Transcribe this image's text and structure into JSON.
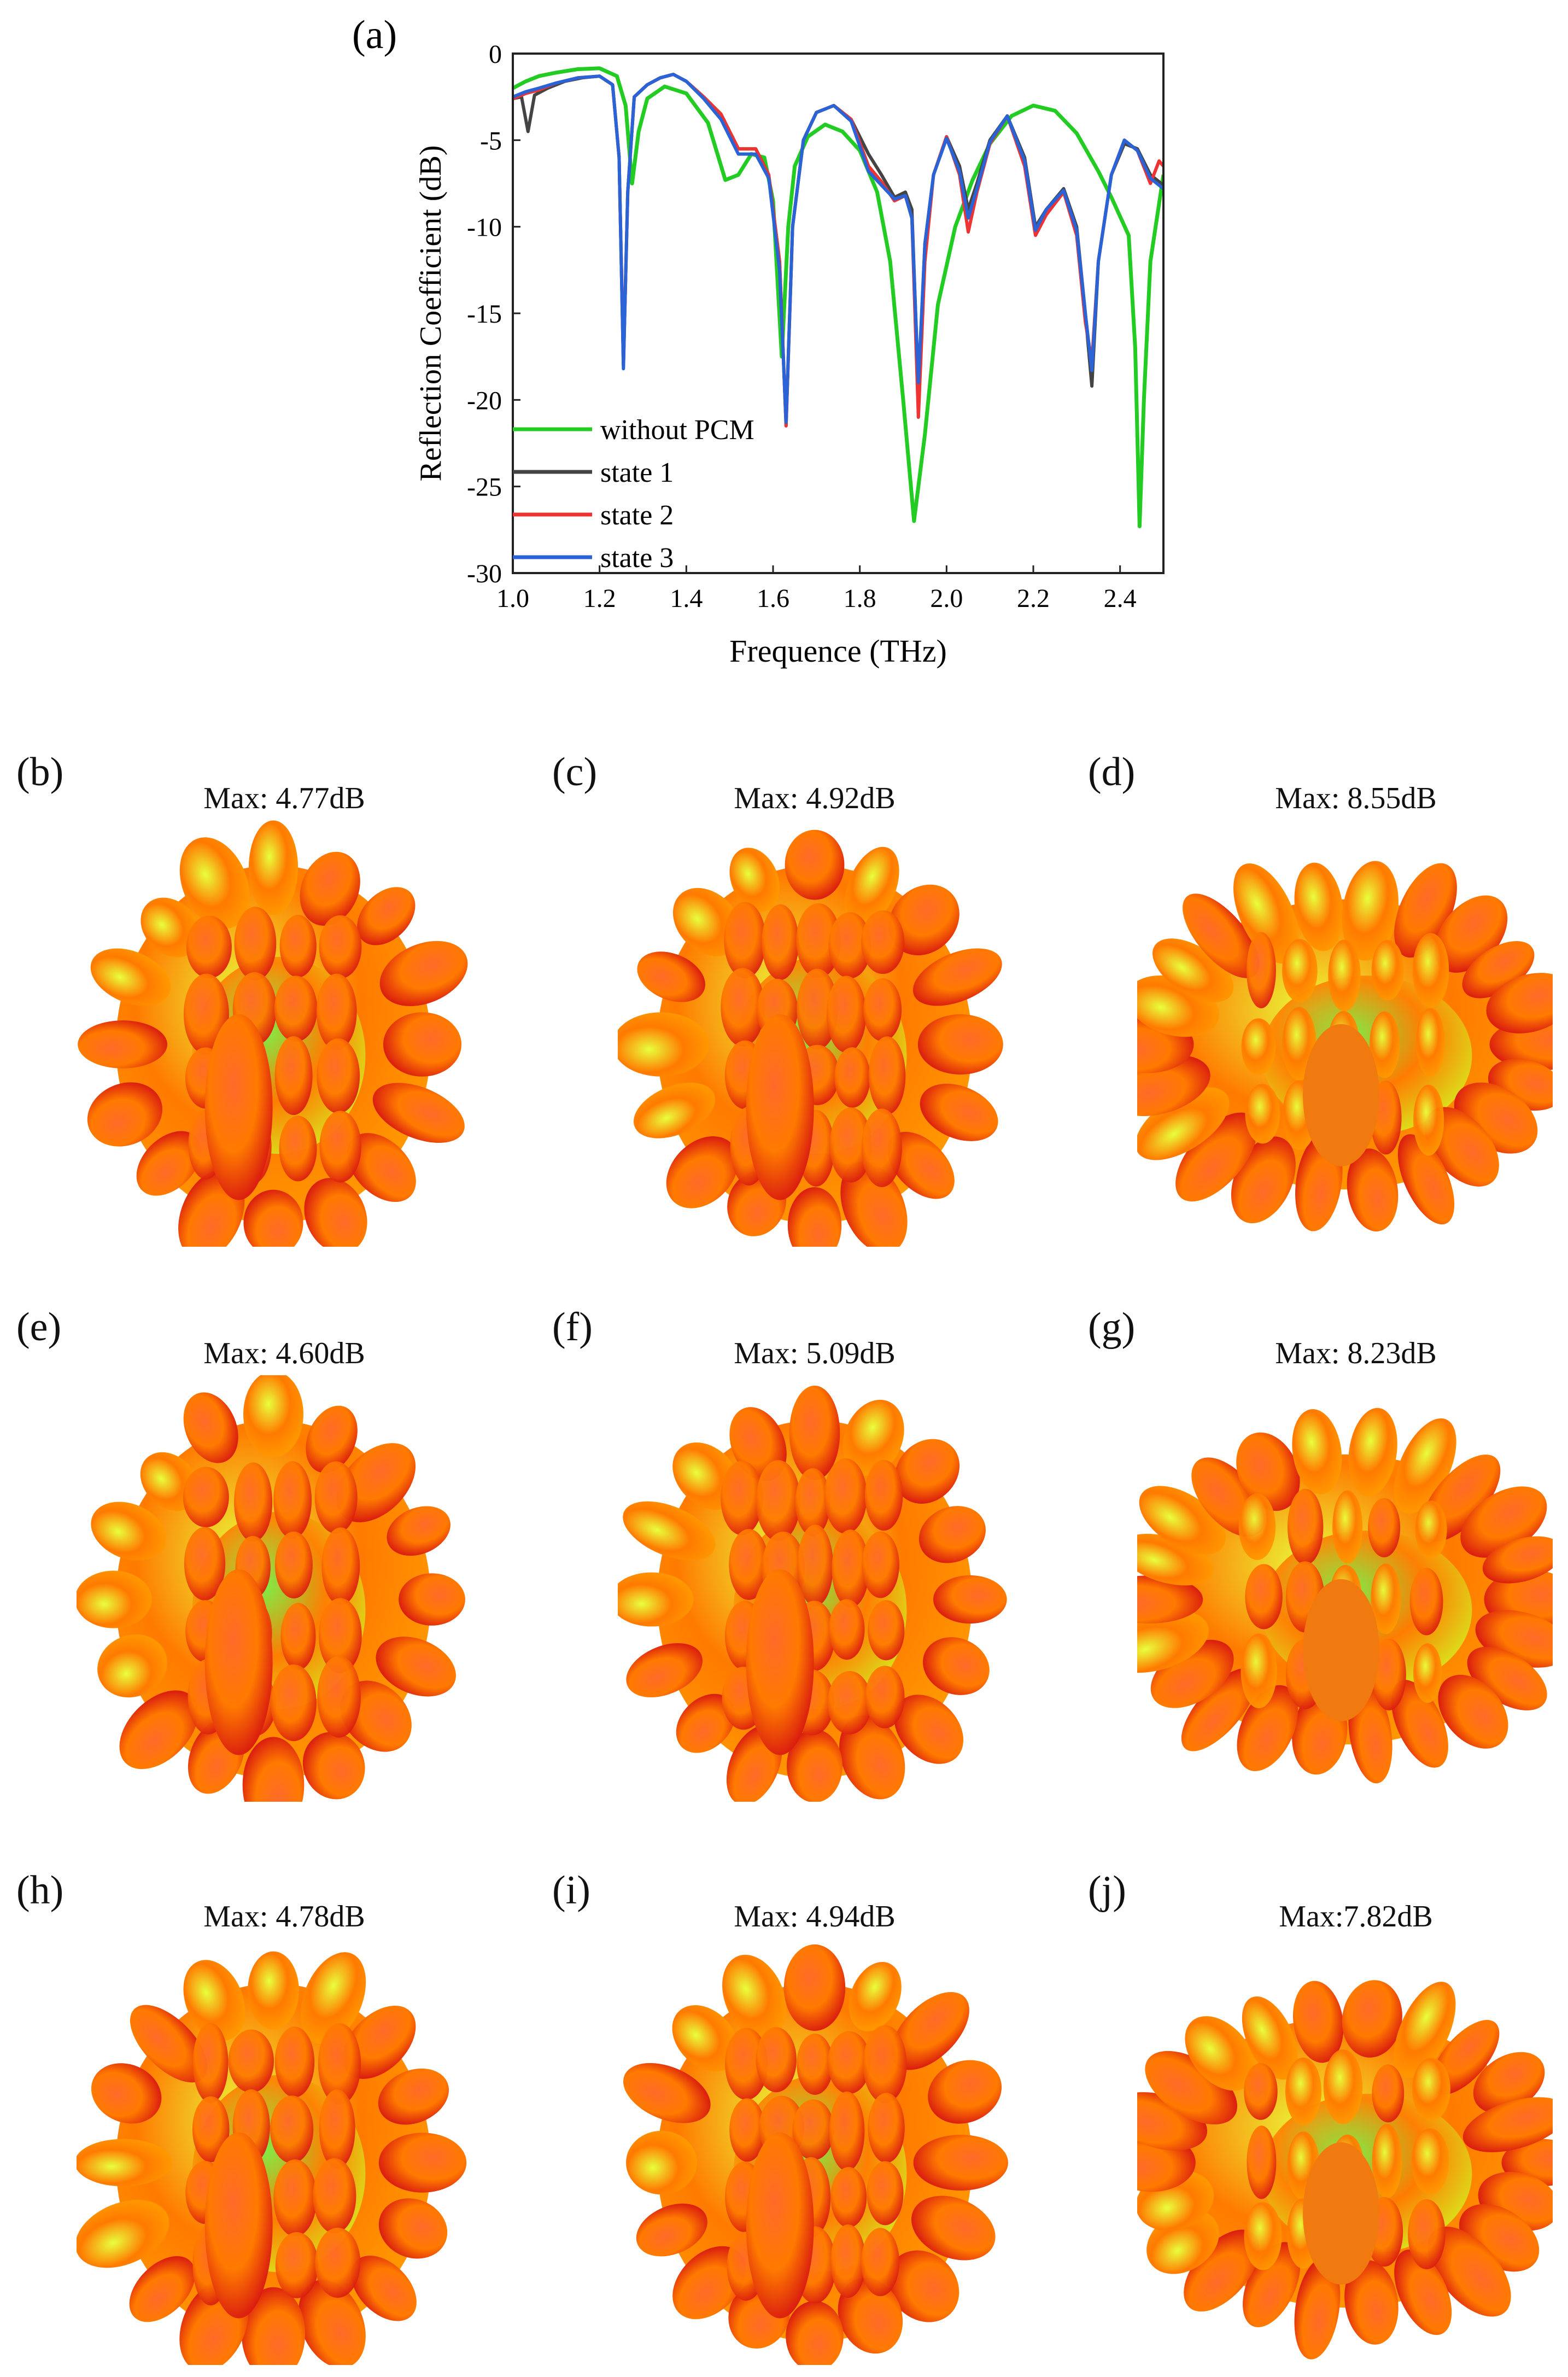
{
  "chart_data": {
    "type": "line",
    "panel_label": "(a)",
    "xlabel": "Frequence (THz)",
    "ylabel": "Reflection Coefficient (dB)",
    "xlim": [
      1.0,
      2.5
    ],
    "ylim": [
      -30,
      0
    ],
    "xticks": [
      1.0,
      1.2,
      1.4,
      1.6,
      1.8,
      2.0,
      2.2,
      2.4
    ],
    "xtick_labels": [
      "1.0",
      "1.2",
      "1.4",
      "1.6",
      "1.8",
      "2.0",
      "2.2",
      "2.4"
    ],
    "yticks": [
      0,
      -5,
      -10,
      -15,
      -20,
      -25,
      -30
    ],
    "ytick_labels": [
      "0",
      "-5",
      "-10",
      "-15",
      "-20",
      "-25",
      "-30"
    ],
    "legend_position": "lower-left",
    "series": [
      {
        "name": "without PCM",
        "color": "#22cc22",
        "points": [
          [
            1.0,
            -2.0
          ],
          [
            1.03,
            -1.6
          ],
          [
            1.06,
            -1.3
          ],
          [
            1.1,
            -1.1
          ],
          [
            1.15,
            -0.9
          ],
          [
            1.2,
            -0.85
          ],
          [
            1.24,
            -1.3
          ],
          [
            1.26,
            -3.0
          ],
          [
            1.275,
            -7.5
          ],
          [
            1.29,
            -4.5
          ],
          [
            1.31,
            -2.6
          ],
          [
            1.35,
            -1.9
          ],
          [
            1.4,
            -2.3
          ],
          [
            1.45,
            -4.0
          ],
          [
            1.49,
            -7.3
          ],
          [
            1.52,
            -7.0
          ],
          [
            1.55,
            -5.8
          ],
          [
            1.58,
            -6.0
          ],
          [
            1.6,
            -8.5
          ],
          [
            1.62,
            -17.5
          ],
          [
            1.635,
            -10.0
          ],
          [
            1.65,
            -6.5
          ],
          [
            1.68,
            -4.8
          ],
          [
            1.72,
            -4.1
          ],
          [
            1.76,
            -4.5
          ],
          [
            1.8,
            -5.6
          ],
          [
            1.84,
            -8.0
          ],
          [
            1.87,
            -12.0
          ],
          [
            1.9,
            -20.0
          ],
          [
            1.925,
            -27.0
          ],
          [
            1.95,
            -22.0
          ],
          [
            1.98,
            -14.5
          ],
          [
            2.02,
            -10.0
          ],
          [
            2.06,
            -7.3
          ],
          [
            2.1,
            -5.2
          ],
          [
            2.15,
            -3.6
          ],
          [
            2.2,
            -3.0
          ],
          [
            2.25,
            -3.3
          ],
          [
            2.3,
            -4.6
          ],
          [
            2.35,
            -6.8
          ],
          [
            2.38,
            -8.3
          ],
          [
            2.42,
            -10.5
          ],
          [
            2.435,
            -17.0
          ],
          [
            2.445,
            -27.3
          ],
          [
            2.455,
            -20.0
          ],
          [
            2.47,
            -12.0
          ],
          [
            2.5,
            -7.0
          ]
        ]
      },
      {
        "name": "state 1",
        "color": "#444444",
        "points": [
          [
            1.0,
            -2.6
          ],
          [
            1.02,
            -2.5
          ],
          [
            1.035,
            -4.5
          ],
          [
            1.05,
            -2.4
          ],
          [
            1.08,
            -2.0
          ],
          [
            1.12,
            -1.6
          ],
          [
            1.16,
            -1.4
          ],
          [
            1.2,
            -1.3
          ],
          [
            1.23,
            -1.8
          ],
          [
            1.245,
            -6.0
          ],
          [
            1.255,
            -18.0
          ],
          [
            1.265,
            -8.0
          ],
          [
            1.28,
            -2.5
          ],
          [
            1.31,
            -1.8
          ],
          [
            1.34,
            -1.4
          ],
          [
            1.37,
            -1.2
          ],
          [
            1.4,
            -1.6
          ],
          [
            1.44,
            -2.5
          ],
          [
            1.48,
            -3.5
          ],
          [
            1.52,
            -5.5
          ],
          [
            1.56,
            -5.5
          ],
          [
            1.59,
            -7.0
          ],
          [
            1.615,
            -12.0
          ],
          [
            1.63,
            -21.5
          ],
          [
            1.645,
            -10.0
          ],
          [
            1.67,
            -5.0
          ],
          [
            1.7,
            -3.4
          ],
          [
            1.74,
            -3.0
          ],
          [
            1.78,
            -3.8
          ],
          [
            1.82,
            -5.8
          ],
          [
            1.85,
            -7.0
          ],
          [
            1.88,
            -8.3
          ],
          [
            1.905,
            -8.0
          ],
          [
            1.92,
            -9.0
          ],
          [
            1.935,
            -19.5
          ],
          [
            1.95,
            -11.0
          ],
          [
            1.97,
            -7.0
          ],
          [
            2.0,
            -4.8
          ],
          [
            2.03,
            -6.5
          ],
          [
            2.05,
            -9.0
          ],
          [
            2.07,
            -7.5
          ],
          [
            2.1,
            -5.0
          ],
          [
            2.14,
            -3.6
          ],
          [
            2.18,
            -6.0
          ],
          [
            2.205,
            -10.0
          ],
          [
            2.23,
            -9.0
          ],
          [
            2.27,
            -7.8
          ],
          [
            2.3,
            -10.0
          ],
          [
            2.32,
            -15.0
          ],
          [
            2.335,
            -19.2
          ],
          [
            2.35,
            -12.0
          ],
          [
            2.38,
            -7.0
          ],
          [
            2.41,
            -5.2
          ],
          [
            2.44,
            -5.5
          ],
          [
            2.47,
            -7.0
          ],
          [
            2.5,
            -7.6
          ]
        ]
      },
      {
        "name": "state 2",
        "color": "#ee3333",
        "points": [
          [
            1.0,
            -2.6
          ],
          [
            1.03,
            -2.3
          ],
          [
            1.06,
            -2.1
          ],
          [
            1.1,
            -1.7
          ],
          [
            1.15,
            -1.4
          ],
          [
            1.2,
            -1.3
          ],
          [
            1.23,
            -1.8
          ],
          [
            1.245,
            -6.0
          ],
          [
            1.255,
            -18.0
          ],
          [
            1.265,
            -8.0
          ],
          [
            1.28,
            -2.5
          ],
          [
            1.31,
            -1.8
          ],
          [
            1.34,
            -1.4
          ],
          [
            1.37,
            -1.2
          ],
          [
            1.4,
            -1.6
          ],
          [
            1.44,
            -2.5
          ],
          [
            1.48,
            -3.5
          ],
          [
            1.52,
            -5.5
          ],
          [
            1.56,
            -5.5
          ],
          [
            1.59,
            -7.0
          ],
          [
            1.615,
            -12.0
          ],
          [
            1.63,
            -21.5
          ],
          [
            1.645,
            -10.0
          ],
          [
            1.67,
            -5.0
          ],
          [
            1.7,
            -3.4
          ],
          [
            1.74,
            -3.0
          ],
          [
            1.78,
            -3.8
          ],
          [
            1.82,
            -6.5
          ],
          [
            1.85,
            -7.4
          ],
          [
            1.88,
            -8.5
          ],
          [
            1.905,
            -8.2
          ],
          [
            1.92,
            -9.5
          ],
          [
            1.935,
            -21.0
          ],
          [
            1.95,
            -12.0
          ],
          [
            1.97,
            -7.0
          ],
          [
            2.0,
            -4.8
          ],
          [
            2.03,
            -7.0
          ],
          [
            2.05,
            -10.3
          ],
          [
            2.07,
            -8.0
          ],
          [
            2.1,
            -5.2
          ],
          [
            2.14,
            -3.6
          ],
          [
            2.18,
            -6.5
          ],
          [
            2.205,
            -10.5
          ],
          [
            2.23,
            -9.3
          ],
          [
            2.27,
            -8.0
          ],
          [
            2.3,
            -10.5
          ],
          [
            2.32,
            -15.5
          ],
          [
            2.335,
            -17.8
          ],
          [
            2.35,
            -12.0
          ],
          [
            2.38,
            -7.0
          ],
          [
            2.41,
            -5.0
          ],
          [
            2.44,
            -5.6
          ],
          [
            2.47,
            -7.5
          ],
          [
            2.49,
            -6.2
          ],
          [
            2.5,
            -6.5
          ]
        ]
      },
      {
        "name": "state 3",
        "color": "#2a63d6",
        "points": [
          [
            1.0,
            -2.5
          ],
          [
            1.03,
            -2.2
          ],
          [
            1.06,
            -2.0
          ],
          [
            1.1,
            -1.7
          ],
          [
            1.15,
            -1.4
          ],
          [
            1.2,
            -1.3
          ],
          [
            1.23,
            -1.8
          ],
          [
            1.245,
            -6.0
          ],
          [
            1.255,
            -18.2
          ],
          [
            1.265,
            -8.0
          ],
          [
            1.28,
            -2.5
          ],
          [
            1.31,
            -1.8
          ],
          [
            1.34,
            -1.4
          ],
          [
            1.37,
            -1.2
          ],
          [
            1.4,
            -1.6
          ],
          [
            1.44,
            -2.6
          ],
          [
            1.48,
            -3.8
          ],
          [
            1.52,
            -5.8
          ],
          [
            1.56,
            -5.8
          ],
          [
            1.59,
            -7.2
          ],
          [
            1.615,
            -12.5
          ],
          [
            1.63,
            -21.3
          ],
          [
            1.645,
            -10.0
          ],
          [
            1.67,
            -5.0
          ],
          [
            1.7,
            -3.4
          ],
          [
            1.74,
            -3.0
          ],
          [
            1.78,
            -3.9
          ],
          [
            1.82,
            -6.8
          ],
          [
            1.85,
            -7.6
          ],
          [
            1.88,
            -8.4
          ],
          [
            1.905,
            -8.2
          ],
          [
            1.92,
            -9.5
          ],
          [
            1.935,
            -19.0
          ],
          [
            1.95,
            -11.0
          ],
          [
            1.97,
            -7.0
          ],
          [
            2.0,
            -4.9
          ],
          [
            2.03,
            -6.8
          ],
          [
            2.05,
            -9.5
          ],
          [
            2.07,
            -7.8
          ],
          [
            2.1,
            -5.1
          ],
          [
            2.14,
            -3.6
          ],
          [
            2.18,
            -6.2
          ],
          [
            2.205,
            -10.2
          ],
          [
            2.23,
            -9.0
          ],
          [
            2.27,
            -7.9
          ],
          [
            2.3,
            -10.2
          ],
          [
            2.32,
            -15.0
          ],
          [
            2.335,
            -18.3
          ],
          [
            2.35,
            -12.0
          ],
          [
            2.38,
            -7.0
          ],
          [
            2.41,
            -5.0
          ],
          [
            2.44,
            -5.6
          ],
          [
            2.47,
            -7.2
          ],
          [
            2.5,
            -7.8
          ]
        ]
      }
    ]
  },
  "patterns": [
    {
      "label": "(b)",
      "max": "Max: 4.77dB",
      "shape": "tall",
      "gain": 4.77
    },
    {
      "label": "(c)",
      "max": "Max: 4.92dB",
      "shape": "dense",
      "gain": 4.92
    },
    {
      "label": "(d)",
      "max": "Max: 8.55dB",
      "shape": "wide",
      "gain": 8.55
    },
    {
      "label": "(e)",
      "max": "Max: 4.60dB",
      "shape": "tall",
      "gain": 4.6
    },
    {
      "label": "(f)",
      "max": "Max: 5.09dB",
      "shape": "dense",
      "gain": 5.09
    },
    {
      "label": "(g)",
      "max": "Max: 8.23dB",
      "shape": "wide",
      "gain": 8.23
    },
    {
      "label": "(h)",
      "max": "Max: 4.78dB",
      "shape": "tall",
      "gain": 4.78
    },
    {
      "label": "(i)",
      "max": "Max: 4.94dB",
      "shape": "dense",
      "gain": 4.94
    },
    {
      "label": "(j)",
      "max": "Max:7.82dB",
      "shape": "wide",
      "gain": 7.82
    }
  ]
}
